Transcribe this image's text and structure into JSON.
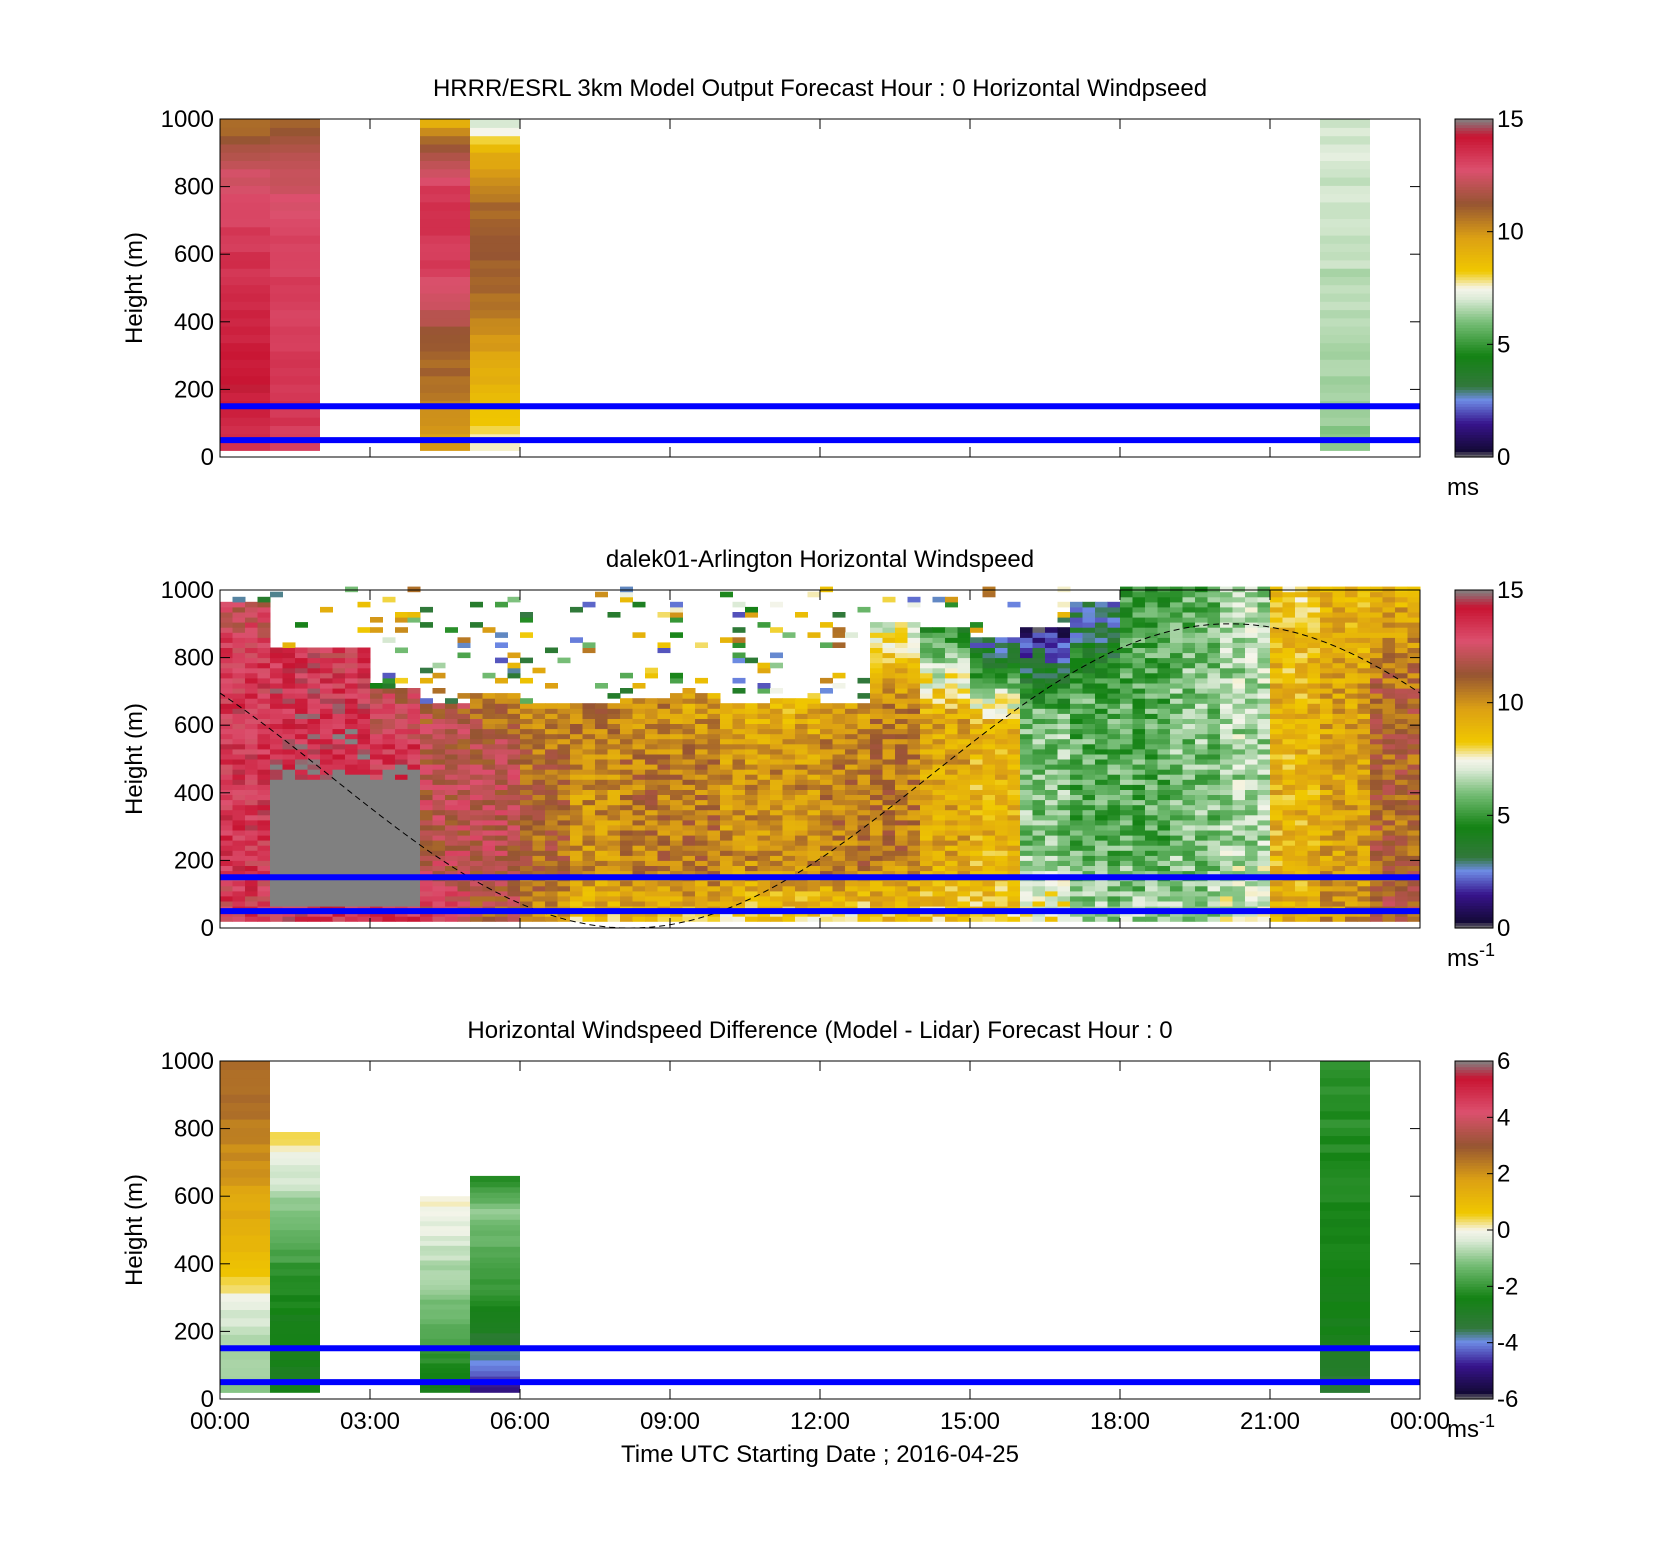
{
  "chart_data": [
    {
      "type": "heatmap",
      "title": "HRRR/ESRL 3km Model Output   Forecast Hour : 0 Horizontal Windpseed",
      "ylabel": "Height (m)",
      "ylim": [
        0,
        1000
      ],
      "yticks": [
        "0",
        "200",
        "400",
        "600",
        "800",
        "1000"
      ],
      "xlim_hours": [
        0,
        24
      ],
      "colorbar": {
        "ticks": [
          "0",
          "5",
          "10",
          "15"
        ],
        "range": [
          0,
          15
        ],
        "unit": "ms",
        "unit_sup": ""
      },
      "reference_lines_m": [
        50,
        150
      ],
      "columns": [
        {
          "start_h": 0,
          "end_h": 1,
          "top_m": 1000,
          "bottom_m": 20,
          "profile": [
            13.5,
            14.0,
            14.2,
            14.0,
            13.8,
            13.5,
            13.2,
            12.8,
            12.0,
            10.5
          ]
        },
        {
          "start_h": 1,
          "end_h": 2,
          "top_m": 1000,
          "bottom_m": 20,
          "profile": [
            13.2,
            13.4,
            13.4,
            13.3,
            13.2,
            13.1,
            13.0,
            12.6,
            11.8,
            10.8
          ]
        },
        {
          "start_h": 4,
          "end_h": 5,
          "top_m": 1000,
          "bottom_m": 20,
          "profile": [
            9.8,
            10.2,
            10.8,
            11.2,
            12.3,
            13.2,
            13.5,
            13.4,
            12.0,
            9.0
          ]
        },
        {
          "start_h": 5,
          "end_h": 6,
          "top_m": 1000,
          "bottom_m": 20,
          "profile": [
            7.5,
            8.6,
            9.2,
            10.0,
            10.8,
            11.0,
            11.2,
            10.6,
            9.4,
            6.5
          ]
        },
        {
          "start_h": 22,
          "end_h": 23,
          "top_m": 1000,
          "bottom_m": 20,
          "profile": [
            6.2,
            6.3,
            6.4,
            6.5,
            6.6,
            6.7,
            6.8,
            6.9,
            7.0,
            7.0
          ]
        }
      ]
    },
    {
      "type": "heatmap",
      "title": "dalek01-Arlington  Horizontal Windspeed",
      "ylabel": "Height (m)",
      "ylim": [
        0,
        1000
      ],
      "yticks": [
        "0",
        "200",
        "400",
        "600",
        "800",
        "1000"
      ],
      "xlim_hours": [
        0,
        24
      ],
      "colorbar": {
        "ticks": [
          "0",
          "5",
          "10",
          "15"
        ],
        "range": [
          0,
          15
        ],
        "unit": "ms",
        "unit_sup": "-1"
      },
      "reference_lines_m": [
        50,
        150
      ],
      "speed_profile_by_hour": [
        {
          "hour": 0.5,
          "low": 13.0,
          "mid": 13.5,
          "top": 12.5,
          "top_m": 950
        },
        {
          "hour": 1.5,
          "low": 13.5,
          "mid": 14.0,
          "top": 13.5,
          "top_m": 820
        },
        {
          "hour": 2.5,
          "low": 13.5,
          "mid": 14.0,
          "top": 13.0,
          "top_m": 820
        },
        {
          "hour": 3.5,
          "low": 13.5,
          "mid": 13.5,
          "top": 12.0,
          "top_m": 700
        },
        {
          "hour": 4.5,
          "low": 13.0,
          "mid": 12.0,
          "top": 11.5,
          "top_m": 660
        },
        {
          "hour": 5.5,
          "low": 11.0,
          "mid": 12.0,
          "top": 10.5,
          "top_m": 680
        },
        {
          "hour": 6.5,
          "low": 9.5,
          "mid": 11.0,
          "top": 10.0,
          "top_m": 650
        },
        {
          "hour": 7.5,
          "low": 8.5,
          "mid": 10.0,
          "top": 10.5,
          "top_m": 660
        },
        {
          "hour": 8.5,
          "low": 8.5,
          "mid": 10.5,
          "top": 10.0,
          "top_m": 670
        },
        {
          "hour": 9.5,
          "low": 8.5,
          "mid": 10.5,
          "top": 9.5,
          "top_m": 690
        },
        {
          "hour": 10.5,
          "low": 8.0,
          "mid": 10.0,
          "top": 9.0,
          "top_m": 660
        },
        {
          "hour": 11.5,
          "low": 8.0,
          "mid": 10.0,
          "top": 9.0,
          "top_m": 670
        },
        {
          "hour": 12.5,
          "low": 7.5,
          "mid": 10.5,
          "top": 9.5,
          "top_m": 660
        },
        {
          "hour": 13.5,
          "low": 8.5,
          "mid": 10.5,
          "top": 7.0,
          "top_m": 900
        },
        {
          "hour": 14.5,
          "low": 8.5,
          "mid": 9.5,
          "top": 4.5,
          "top_m": 880
        },
        {
          "hour": 15.5,
          "low": 8.5,
          "mid": 9.0,
          "top": 2.5,
          "top_m": 850
        },
        {
          "hour": 16.5,
          "low": 8.0,
          "mid": 6.0,
          "top": 1.0,
          "top_m": 880
        },
        {
          "hour": 17.5,
          "low": 6.5,
          "mid": 5.5,
          "top": 2.5,
          "top_m": 950
        },
        {
          "hour": 18.5,
          "low": 6.5,
          "mid": 5.5,
          "top": 5.0,
          "top_m": 1000
        },
        {
          "hour": 19.5,
          "low": 6.5,
          "mid": 6.0,
          "top": 5.5,
          "top_m": 1000
        },
        {
          "hour": 20.5,
          "low": 7.0,
          "mid": 6.5,
          "top": 6.5,
          "top_m": 1000
        },
        {
          "hour": 21.5,
          "low": 9.0,
          "mid": 9.0,
          "top": 8.5,
          "top_m": 1000
        },
        {
          "hour": 22.5,
          "low": 10.0,
          "mid": 9.5,
          "top": 9.0,
          "top_m": 1000
        },
        {
          "hour": 23.5,
          "low": 11.5,
          "mid": 11.0,
          "top": 9.0,
          "top_m": 1000
        }
      ],
      "missing_region": {
        "start_h": 1.1,
        "end_h": 3.9,
        "bottom_m": 60,
        "top_m": 480
      },
      "sun_curve": {
        "amplitude_m": 450,
        "center_m": 450,
        "peak_hour": 20.2,
        "period_h": 24
      }
    },
    {
      "type": "heatmap",
      "title": "Horizontal Windspeed Difference (Model - Lidar) Forecast Hour : 0",
      "ylabel": "Height (m)",
      "xlabel": "Time UTC  Starting Date ; 2016-04-25",
      "ylim": [
        0,
        1000
      ],
      "yticks": [
        "0",
        "200",
        "400",
        "600",
        "800",
        "1000"
      ],
      "xticks": [
        "00:00",
        "03:00",
        "06:00",
        "09:00",
        "12:00",
        "15:00",
        "18:00",
        "21:00",
        "00:00"
      ],
      "xlim_hours": [
        0,
        24
      ],
      "colorbar": {
        "ticks": [
          "-6",
          "-4",
          "-2",
          "0",
          "2",
          "4",
          "6"
        ],
        "range": [
          -6,
          6
        ],
        "unit": "ms",
        "unit_sup": "-1"
      },
      "reference_lines_m": [
        50,
        150
      ],
      "columns": [
        {
          "start_h": 0,
          "end_h": 1,
          "top_m": 1000,
          "bottom_m": 20,
          "profile": [
            -1.0,
            -0.8,
            -0.4,
            0.4,
            1.2,
            1.5,
            2.0,
            2.3,
            2.6,
            2.8
          ]
        },
        {
          "start_h": 1,
          "end_h": 2,
          "top_m": 790,
          "bottom_m": 20,
          "profile": [
            -2.6,
            -2.6,
            -2.5,
            -2.2,
            -1.6,
            -1.0,
            -0.3,
            0.5
          ]
        },
        {
          "start_h": 4,
          "end_h": 5,
          "top_m": 600,
          "bottom_m": 20,
          "profile": [
            -2.6,
            -2.0,
            -1.3,
            -0.8,
            -0.3,
            0.1
          ]
        },
        {
          "start_h": 5,
          "end_h": 6,
          "top_m": 660,
          "bottom_m": 20,
          "profile": [
            -5.0,
            -3.8,
            -2.6,
            -2.0,
            -1.5,
            -1.0,
            -2.2
          ]
        },
        {
          "start_h": 22,
          "end_h": 23,
          "top_m": 1000,
          "bottom_m": 20,
          "profile": [
            -3.4,
            -2.8,
            -2.6,
            -2.5,
            -2.4,
            -2.3,
            -2.3,
            -2.2,
            -2.1,
            -2.0
          ]
        }
      ]
    }
  ]
}
